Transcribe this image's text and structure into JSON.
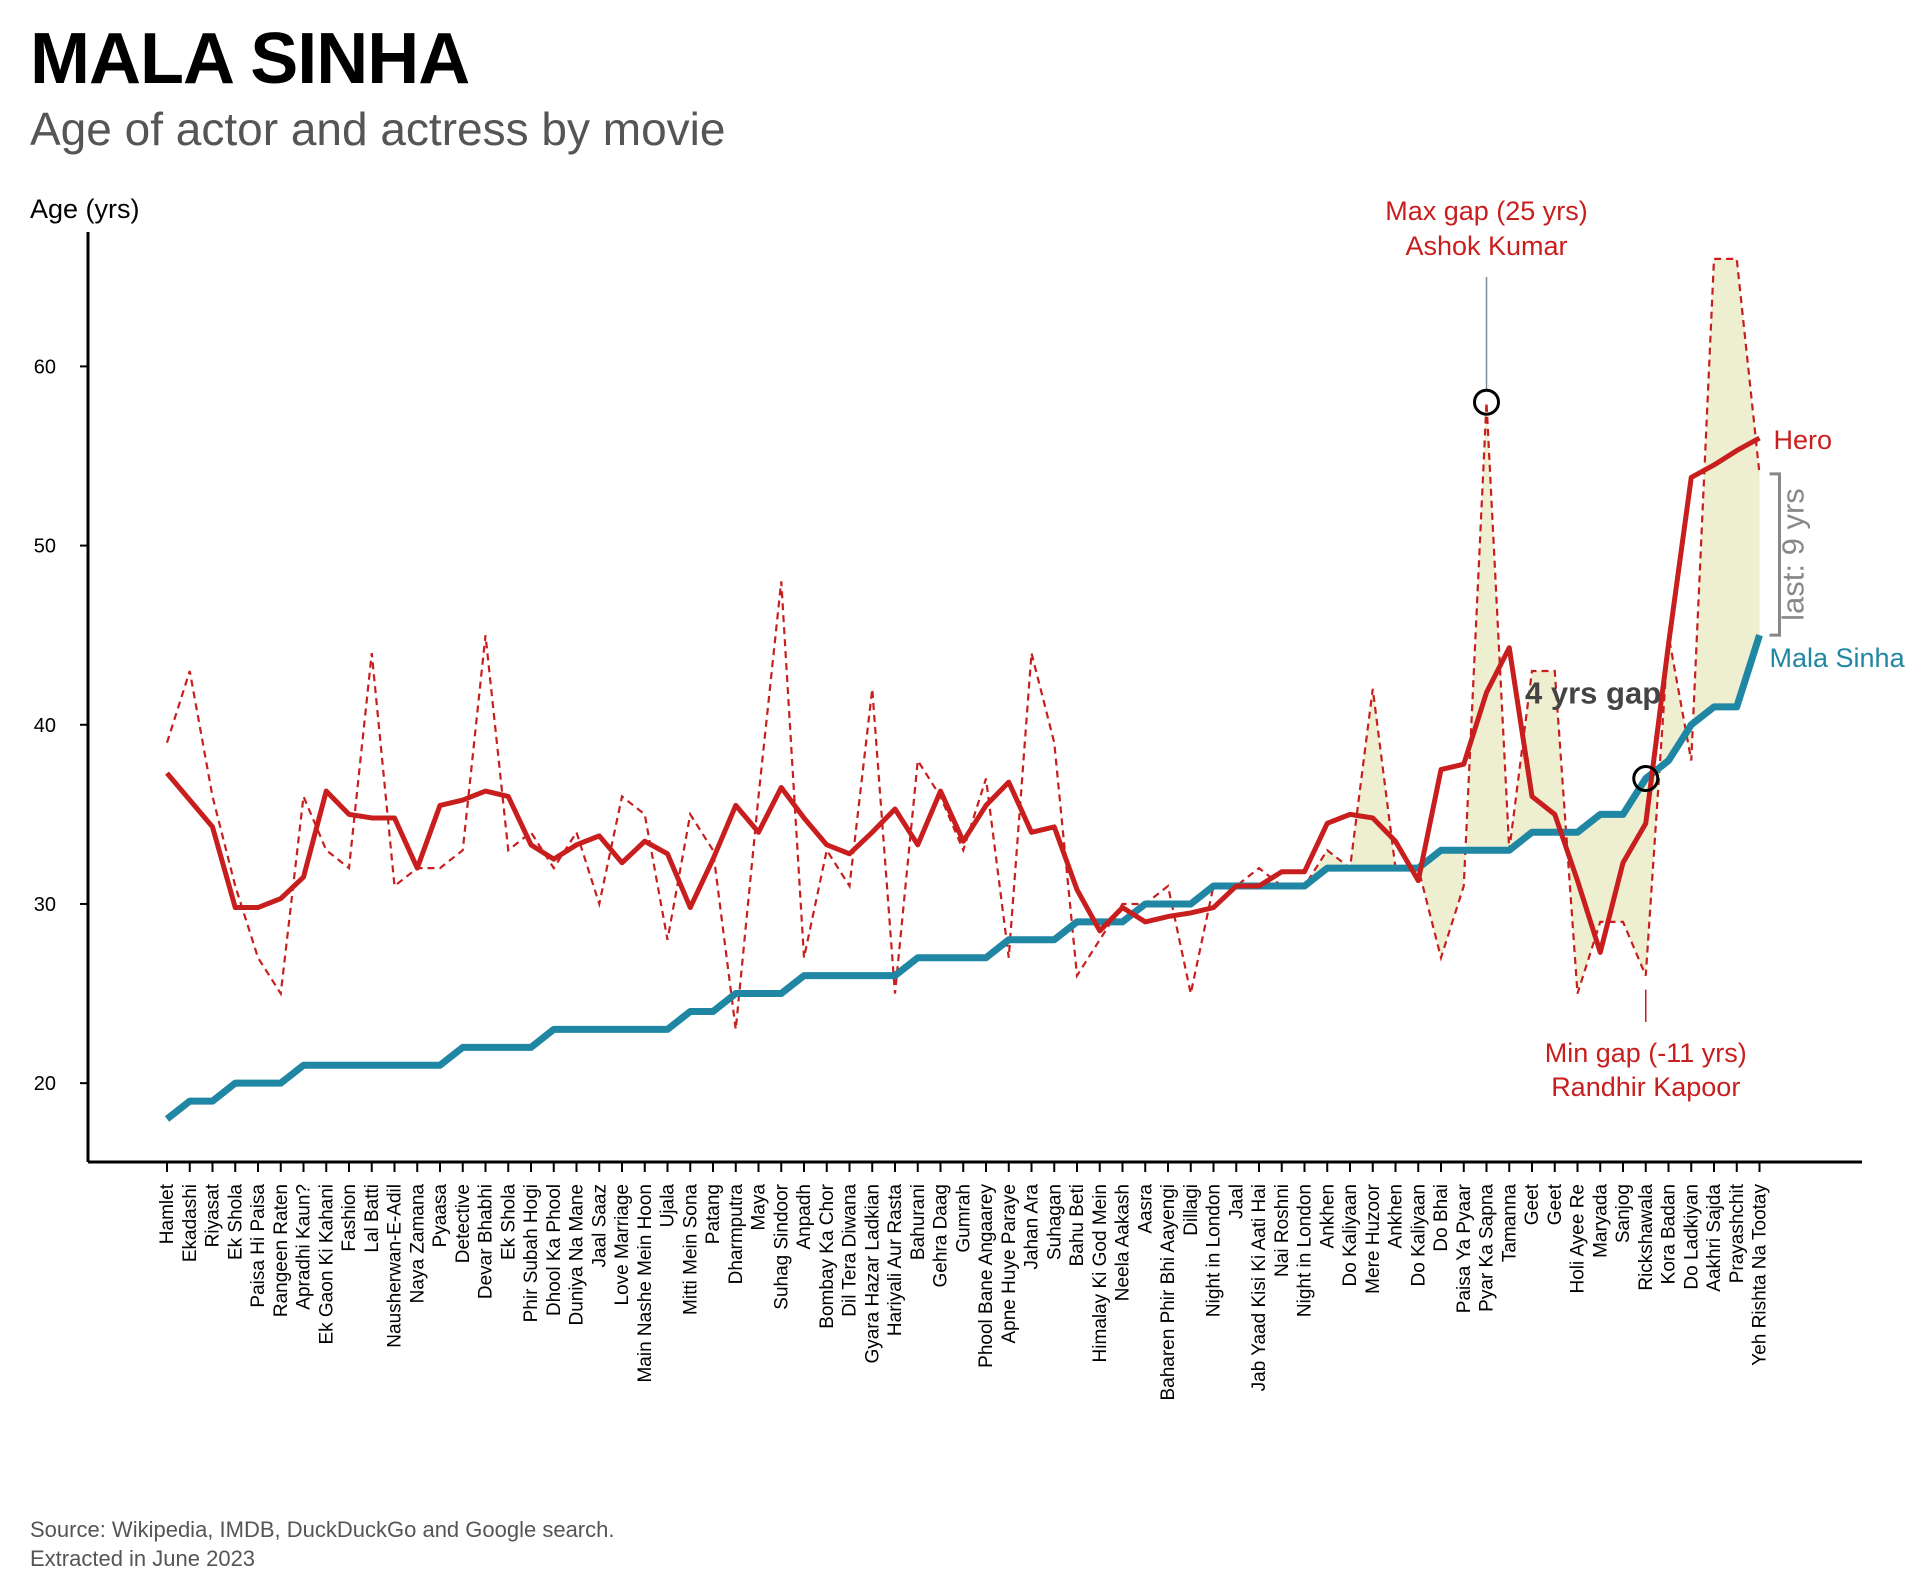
{
  "header": {
    "title": "MALA SINHA",
    "subtitle": "Age of actor and actress by movie"
  },
  "footer": {
    "source_line1": "Source: Wikipedia, IMDB, DuckDuckGo and Google search.",
    "source_line2": "Extracted in June 2023"
  },
  "colors": {
    "hero": "#c81e1e",
    "actress": "#1f86a3",
    "gap_fill": "#ebebc8",
    "marker": "#000000",
    "bracket": "#888888"
  },
  "annotations": {
    "max_gap_line1": "Max gap (25 yrs)",
    "max_gap_line2": "Ashok Kumar",
    "min_gap_line1": "Min gap (-11 yrs)",
    "min_gap_line2": "Randhir Kapoor",
    "hero_label": "Hero",
    "actress_label": "Mala Sinha",
    "last_gap": "last: 9 yrs",
    "cross_gap": "4 yrs gap"
  },
  "chart_data": {
    "type": "line",
    "ylabel": "Age (yrs)",
    "ylim": [
      15.6,
      67.5
    ],
    "yticks": [
      20,
      30,
      40,
      50,
      60
    ],
    "grid": false,
    "categories": [
      "Hamlet",
      "Ekadashi",
      "Riyasat",
      "Ek Shola",
      "Paisa Hi Paisa",
      "Rangeen Raten",
      "Apradhi Kaun?",
      "Ek Gaon Ki Kahani",
      "Fashion",
      "Lal Batti",
      "Nausherwan-E-Adil",
      "Naya Zamana",
      "Pyaasa",
      "Detective",
      "Devar Bhabhi",
      "Ek Shola",
      "Phir Subah Hogi",
      "Dhool Ka Phool",
      "Duniya Na Mane",
      "Jaal Saaz",
      "Love Marriage",
      "Main Nashe Mein Hoon",
      "Ujala",
      "Mitti Mein Sona",
      "Patang",
      "Dharmputra",
      "Maya",
      "Suhag Sindoor",
      "Anpadh",
      "Bombay Ka Chor",
      "Dil Tera Diwana",
      "Gyara Hazar Ladkian",
      "Hariyali Aur Rasta",
      "Bahurani",
      "Gehra Daag",
      "Gumrah",
      "Phool Bane Angaarey",
      "Apne Huye Paraye",
      "Jahan Ara",
      "Suhagan",
      "Bahu Beti",
      "Himalay Ki God Mein",
      "Neela Aakash",
      "Aasra",
      "Baharen Phir Bhi Aayengi",
      "Dillagi",
      "Night in London",
      "Jaal",
      "Jab Yaad Kisi Ki Aati Hai",
      "Nai Roshni",
      "Night in London",
      "Ankhen",
      "Do Kaliyaan",
      "Mere Huzoor",
      "Ankhen",
      "Do Kaliyaan",
      "Do Bhai",
      "Paisa Ya Pyaar",
      "Pyar Ka Sapna",
      "Tamanna",
      "Geet",
      "Geet",
      "Holi Ayee Re",
      "Maryada",
      "Sanjog",
      "Rickshawala",
      "Kora Badan",
      "Do Ladkiyan",
      "Aakhri Sajda",
      "Prayashchit",
      "Yeh Rishta Na Tootay"
    ],
    "series": [
      {
        "values": [
          39,
          43,
          36,
          31,
          27,
          25,
          36,
          33,
          32,
          44,
          31,
          32,
          32,
          33,
          45,
          33,
          34,
          32,
          34,
          30,
          36,
          35,
          28,
          35,
          33,
          23,
          36,
          48,
          27,
          33,
          31,
          42,
          25,
          38,
          36,
          33,
          37,
          27,
          44,
          39,
          26,
          28,
          30,
          30,
          31,
          25,
          31,
          31,
          32,
          31,
          31,
          33,
          32,
          42,
          32,
          32,
          27,
          31,
          58,
          33,
          43,
          43,
          25,
          29,
          29,
          26,
          45,
          38,
          66,
          66,
          54
        ]
      },
      {
        "values": [
          37.3,
          35.8,
          34.3,
          29.8,
          29.8,
          30.3,
          31.5,
          36.3,
          35,
          34.8,
          34.8,
          32,
          35.5,
          35.8,
          36.3,
          36,
          33.3,
          32.5,
          33.3,
          33.8,
          32.3,
          33.5,
          32.8,
          29.8,
          32.5,
          35.5,
          34,
          36.5,
          34.8,
          33.3,
          32.8,
          34,
          35.3,
          33.3,
          36.3,
          33.5,
          35.5,
          36.8,
          34,
          34.3,
          30.8,
          28.5,
          29.8,
          29,
          29.3,
          29.5,
          29.8,
          31,
          31,
          31.8,
          31.8,
          34.5,
          35,
          34.8,
          33.5,
          31.3,
          37.5,
          37.8,
          41.8,
          44.3,
          36,
          35,
          31.3,
          27.3,
          32.3,
          34.5,
          44.5,
          53.8,
          54.5,
          55.3,
          56
        ]
      },
      {
        "name": "Mala Sinha",
        "values": [
          18,
          19,
          19,
          20,
          20,
          20,
          21,
          21,
          21,
          21,
          21,
          21,
          21,
          22,
          22,
          22,
          22,
          23,
          23,
          23,
          23,
          23,
          23,
          24,
          24,
          25,
          25,
          25,
          26,
          26,
          26,
          26,
          26,
          27,
          27,
          27,
          27,
          28,
          28,
          28,
          29,
          29,
          29,
          30,
          30,
          30,
          31,
          31,
          31,
          31,
          31,
          32,
          32,
          32,
          32,
          32,
          33,
          33,
          33,
          33,
          34,
          34,
          34,
          35,
          35,
          37,
          38,
          40,
          41,
          41,
          45
        ]
      }
    ]
  }
}
